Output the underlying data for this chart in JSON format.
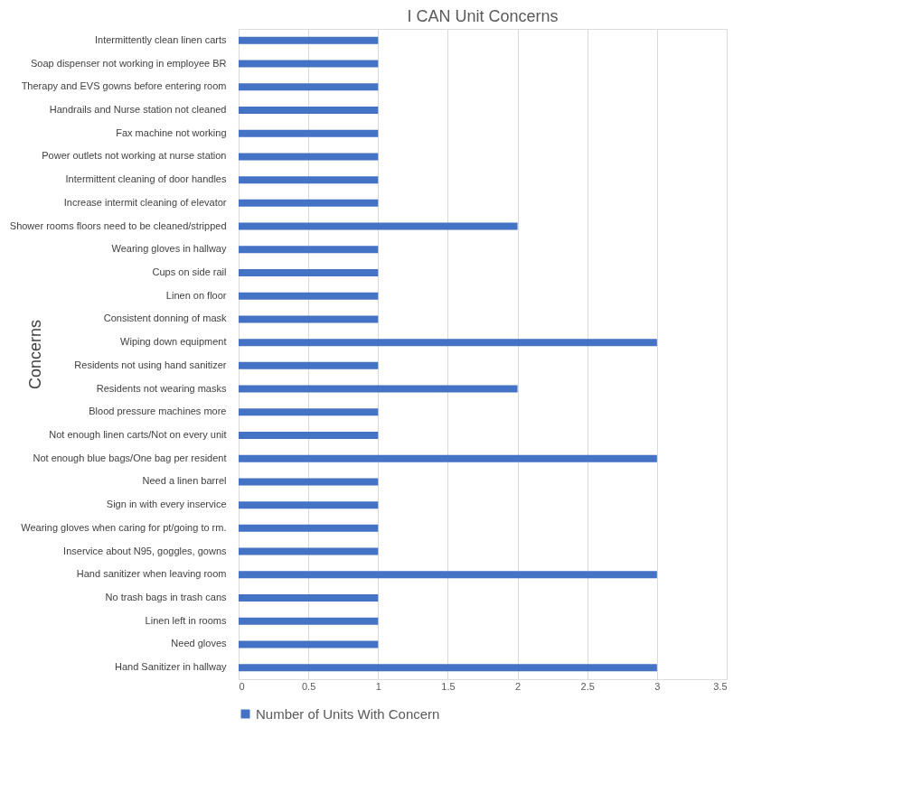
{
  "chart_data": {
    "type": "bar",
    "orientation": "horizontal",
    "title": "I CAN Unit Concerns",
    "ylabel": "Concerns",
    "categories": [
      "Intermittently clean linen carts",
      "Soap dispenser not working in employee BR",
      "Therapy and EVS gowns before entering room",
      "Handrails and Nurse station not cleaned",
      "Fax machine not working",
      "Power outlets not working at nurse station",
      "Intermittent cleaning of door handles",
      "Increase intermit cleaning of elevator",
      "Shower rooms floors need to be cleaned/stripped",
      "Wearing gloves in hallway",
      "Cups on side rail",
      "Linen on floor",
      "Consistent donning of mask",
      "Wiping down equipment",
      "Residents not using hand sanitizer",
      "Residents not wearing masks",
      "Blood pressure machines more",
      "Not enough linen carts/Not on every unit",
      "Not enough blue bags/One bag per resident",
      "Need a linen barrel",
      "Sign in with every inservice",
      "Wearing gloves when caring for pt/going to rm.",
      "Inservice about N95, goggles, gowns",
      "Hand sanitizer when leaving room",
      "No trash bags in trash cans",
      "Linen left in rooms",
      "Need gloves",
      "Hand Sanitizer in hallway"
    ],
    "series": [
      {
        "name": "Number of Units With Concern",
        "color": "#4472c4",
        "values": [
          1,
          1,
          1,
          1,
          1,
          1,
          1,
          1,
          2,
          1,
          1,
          1,
          1,
          3,
          1,
          2,
          1,
          1,
          3,
          1,
          1,
          1,
          1,
          3,
          1,
          1,
          1,
          3
        ]
      }
    ],
    "xlim": [
      0,
      3.5
    ],
    "xticks": [
      0,
      0.5,
      1,
      1.5,
      2,
      2.5,
      3,
      3.5
    ],
    "grid": "x",
    "legend": "bottom"
  }
}
